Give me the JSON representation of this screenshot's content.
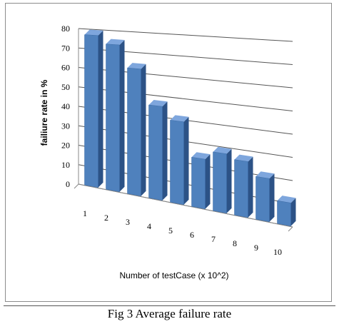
{
  "chart_data": {
    "type": "bar",
    "style": "3d-perspective",
    "title": "",
    "categories": [
      "1",
      "2",
      "3",
      "4",
      "5",
      "6",
      "7",
      "8",
      "9",
      "10"
    ],
    "values": [
      77,
      73,
      62,
      45,
      39,
      23,
      27,
      25,
      19,
      10
    ],
    "xlabel": "Number of testCase (x 10^2)",
    "ylabel": "failiure rate in %",
    "ylim": [
      0,
      80
    ],
    "yticks": [
      "0",
      "10",
      "20",
      "30",
      "40",
      "50",
      "60",
      "70",
      "80"
    ],
    "grid": true,
    "legend": "none",
    "colors": {
      "bar_front": "#4f81bd",
      "bar_side": "#2c5286",
      "bar_top": "#7ea6dd",
      "grid": "#555555"
    }
  },
  "caption": "Fig 3 Average failure rate"
}
